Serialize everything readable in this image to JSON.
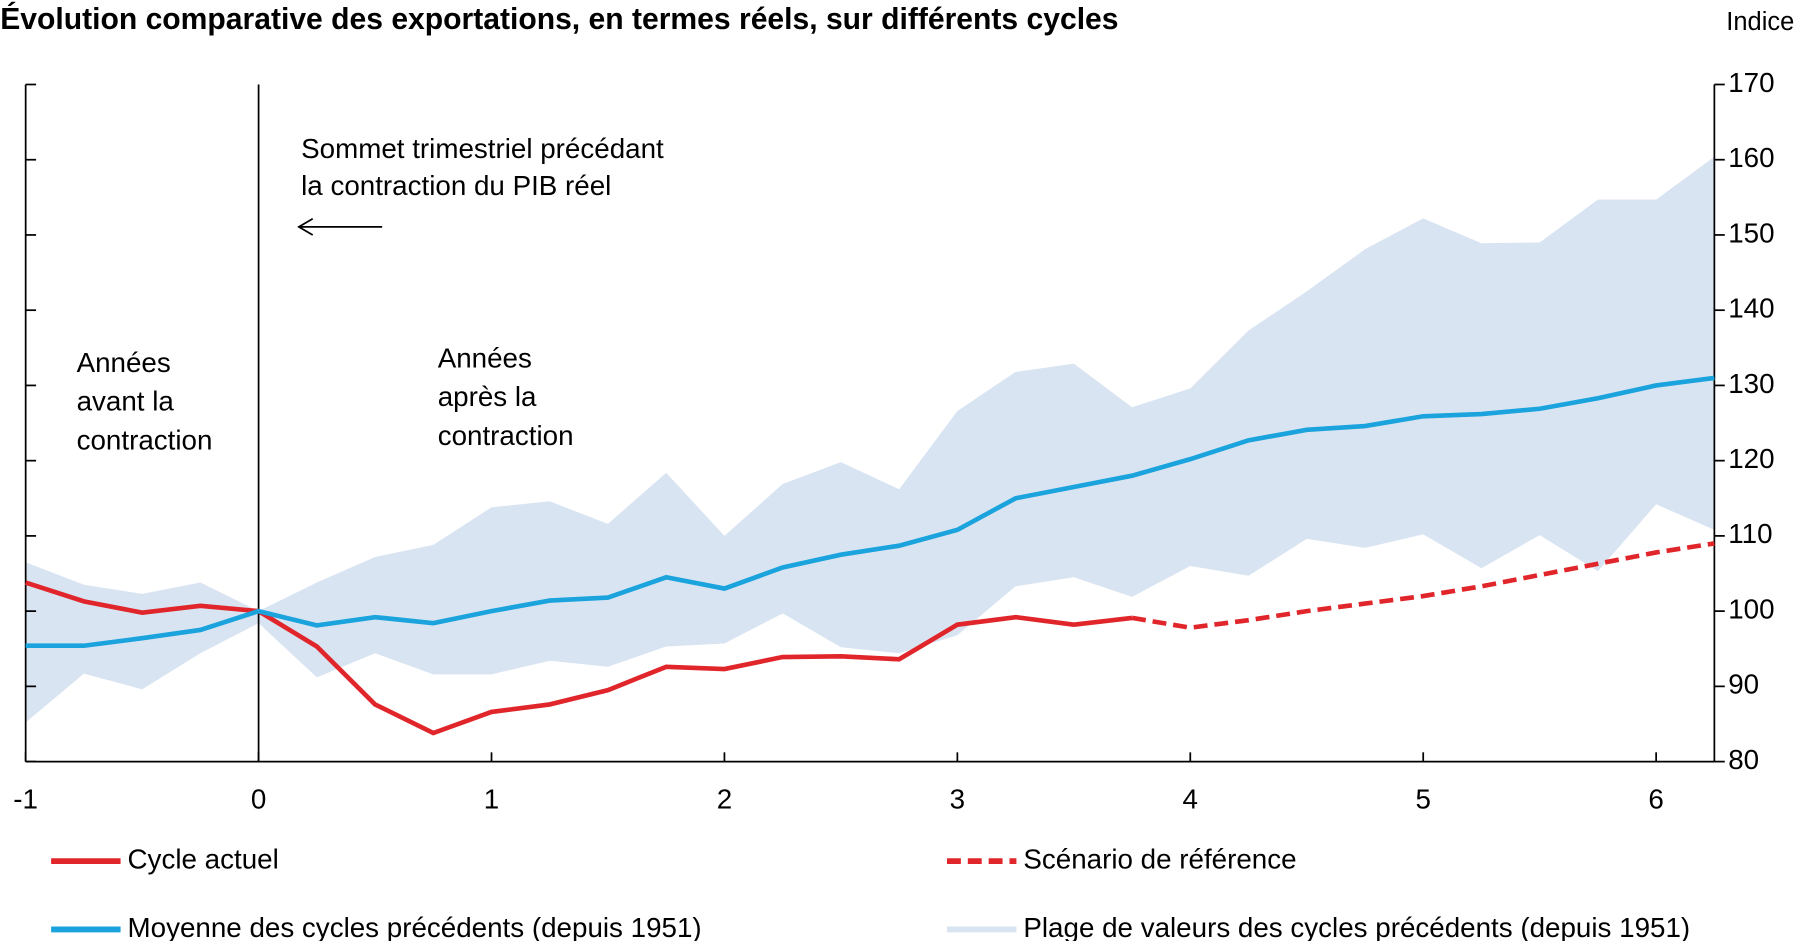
{
  "chart_data": {
    "type": "line",
    "title": "Évolution comparative des exportations, en termes réels, sur différents cycles",
    "y_axis_label": "Indice",
    "x": [
      -1,
      -0.75,
      -0.5,
      -0.25,
      0,
      0.25,
      0.5,
      0.75,
      1,
      1.25,
      1.5,
      1.75,
      2,
      2.25,
      2.5,
      2.75,
      3,
      3.25,
      3.5,
      3.75,
      4,
      4.25,
      4.5,
      4.75,
      5,
      5.25,
      5.5,
      5.75,
      6,
      6.25
    ],
    "xlim": [
      -1,
      6.25
    ],
    "xticks": [
      -1,
      0,
      1,
      2,
      3,
      4,
      5,
      6
    ],
    "ylim": [
      80,
      170
    ],
    "yticks": [
      80,
      90,
      100,
      110,
      120,
      130,
      140,
      150,
      160,
      170
    ],
    "grid": false,
    "band": {
      "name": "Plage de valeurs des cycles précédents (depuis 1951)",
      "color": "#d9e4f2",
      "upper": [
        106.5,
        103.5,
        102.3,
        103.8,
        100,
        103.8,
        107.2,
        108.8,
        113.8,
        114.6,
        111.6,
        118.4,
        110,
        116.9,
        119.8,
        116.2,
        126.6,
        131.8,
        132.9,
        127.1,
        129.6,
        137.3,
        142.5,
        148.1,
        152.2,
        148.9,
        149,
        154.7,
        154.7,
        160.4
      ],
      "lower": [
        85.2,
        91.7,
        89.6,
        94.4,
        98.4,
        91.2,
        94.4,
        91.6,
        91.6,
        93.4,
        92.6,
        95.3,
        95.7,
        99.7,
        95.2,
        94.4,
        96.8,
        103.3,
        104.5,
        101.9,
        106,
        104.7,
        109.6,
        108.4,
        110.2,
        105.7,
        110.1,
        105.3,
        114.2,
        110.8
      ]
    },
    "series": [
      {
        "name": "Cycle actuel",
        "color": "#e0262a",
        "dashed": false,
        "values": [
          103.8,
          101.3,
          99.8,
          100.7,
          100,
          95.3,
          87.6,
          83.8,
          86.6,
          87.6,
          89.5,
          92.6,
          92.3,
          93.9,
          94.0,
          93.6,
          98.2,
          99.2,
          98.2,
          99.1,
          null,
          null,
          null,
          null,
          null,
          null,
          null,
          null,
          null,
          null
        ]
      },
      {
        "name": "Scénario de référence",
        "color": "#e0262a",
        "dashed": true,
        "values": [
          null,
          null,
          null,
          null,
          null,
          null,
          null,
          null,
          null,
          null,
          null,
          null,
          null,
          null,
          null,
          null,
          null,
          null,
          null,
          99.1,
          97.8,
          98.8,
          100,
          101,
          102,
          103.3,
          104.8,
          106.3,
          107.8,
          109
        ]
      },
      {
        "name": "Moyenne des cycles précédents (depuis 1951)",
        "color": "#1aa3dc",
        "dashed": false,
        "values": [
          95.4,
          95.4,
          96.4,
          97.5,
          100,
          98.1,
          99.2,
          98.4,
          100,
          101.4,
          101.8,
          104.5,
          103,
          105.8,
          107.5,
          108.7,
          110.8,
          115,
          116.5,
          118,
          120.2,
          122.7,
          124.1,
          124.6,
          125.9,
          126.2,
          126.9,
          128.3,
          130,
          131
        ]
      }
    ],
    "vline": 0,
    "annotations": [
      {
        "lines": [
          "Sommet trimestriel précédant",
          "la contraction du PIB réel"
        ]
      },
      {
        "lines": [
          "Années",
          "avant la",
          "contraction"
        ]
      },
      {
        "lines": [
          "Années",
          "après la",
          "contraction"
        ]
      }
    ]
  }
}
